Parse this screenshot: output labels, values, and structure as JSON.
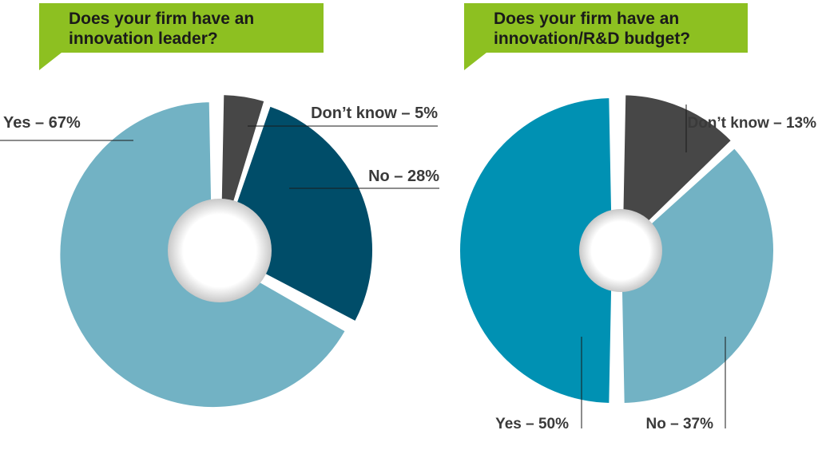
{
  "chart_data": [
    {
      "type": "pie",
      "title": "Does your firm have an innovation leader?",
      "categories": [
        "Yes",
        "Don't know",
        "No"
      ],
      "values": [
        67,
        5,
        28
      ],
      "labels": [
        "Yes – 67%",
        "Don’t know – 5%",
        "No – 28%"
      ],
      "colors": [
        "#72b2c4",
        "#474747",
        "#004d69"
      ],
      "legend": "none"
    },
    {
      "type": "pie",
      "title": "Does your firm have an innovation/R&D budget?",
      "categories": [
        "Yes",
        "Don't know",
        "No"
      ],
      "values": [
        50,
        13,
        37
      ],
      "labels": [
        "Yes – 50%",
        "Don’t know – 13%",
        "No – 37%"
      ],
      "colors": [
        "#0091b3",
        "#474747",
        "#72b2c4"
      ],
      "legend": "none"
    }
  ]
}
